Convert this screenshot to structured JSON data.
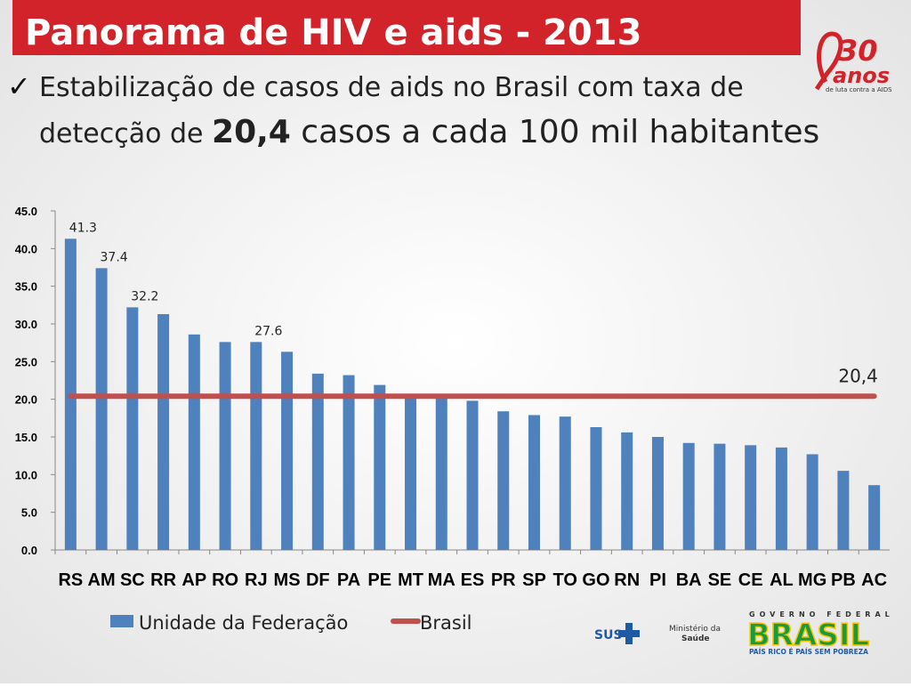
{
  "header": {
    "title": "Panorama de HIV e aids - 2013",
    "bullet": "✓",
    "line1": "Estabilização de casos de aids no Brasil com taxa de",
    "line2_start": "detecção de ",
    "line2_bold": "20,4",
    "line2_end": " casos a cada 100 mil habitantes"
  },
  "logos": {
    "anniversary_number": "30",
    "anniversary_word": "anos",
    "anniversary_caption": "de luta contra a AIDS",
    "sus": "SUS",
    "ministry_line1": "Ministério da",
    "ministry_line2": "Saúde",
    "government": "GOVERNO FEDERAL",
    "country": "BRASIL",
    "slogan": "PAÍS RICO É PAÍS SEM POBREZA"
  },
  "chart_data": {
    "type": "bar",
    "categories": [
      "RS",
      "AM",
      "SC",
      "RR",
      "AP",
      "RO",
      "RJ",
      "MS",
      "DF",
      "PA",
      "PE",
      "MT",
      "MA",
      "ES",
      "PR",
      "SP",
      "TO",
      "GO",
      "RN",
      "PI",
      "BA",
      "SE",
      "CE",
      "AL",
      "MG",
      "PB",
      "AC"
    ],
    "series": [
      {
        "name": "Unidade da Federação",
        "color": "#4f81bd",
        "type": "bar",
        "values": [
          41.3,
          37.4,
          32.2,
          31.3,
          28.6,
          27.6,
          27.6,
          26.3,
          23.4,
          23.2,
          21.9,
          20.5,
          20.2,
          19.8,
          18.4,
          17.9,
          17.7,
          16.3,
          15.6,
          15.0,
          14.2,
          14.1,
          13.9,
          13.6,
          12.7,
          10.5,
          8.6
        ],
        "value_labels": [
          "41.3",
          "37.4",
          "32.2",
          null,
          null,
          null,
          "27.6",
          null,
          null,
          null,
          null,
          null,
          null,
          null,
          null,
          null,
          null,
          null,
          null,
          null,
          null,
          null,
          null,
          null,
          null,
          null,
          null
        ]
      },
      {
        "name": "Brasil",
        "color": "#c0504d",
        "type": "line",
        "values": [
          20.4,
          20.4,
          20.4,
          20.4,
          20.4,
          20.4,
          20.4,
          20.4,
          20.4,
          20.4,
          20.4,
          20.4,
          20.4,
          20.4,
          20.4,
          20.4,
          20.4,
          20.4,
          20.4,
          20.4,
          20.4,
          20.4,
          20.4,
          20.4,
          20.4,
          20.4,
          20.4
        ],
        "value_labels": [
          null,
          null,
          null,
          null,
          null,
          null,
          null,
          null,
          null,
          null,
          null,
          null,
          null,
          null,
          null,
          null,
          null,
          null,
          null,
          null,
          null,
          null,
          null,
          null,
          null,
          null,
          "20,4"
        ]
      }
    ],
    "ylim": [
      0,
      45
    ],
    "yticks": [
      {
        "value": 0,
        "label": "0.0"
      },
      {
        "value": 5,
        "label": "5.0"
      },
      {
        "value": 10,
        "label": "10.0"
      },
      {
        "value": 15,
        "label": "15.0"
      },
      {
        "value": 20,
        "label": "20.0"
      },
      {
        "value": 25,
        "label": "25.0"
      },
      {
        "value": 30,
        "label": "30.0"
      },
      {
        "value": 35,
        "label": "35.0"
      },
      {
        "value": 40,
        "label": "40.0"
      },
      {
        "value": 45,
        "label": "45.0"
      }
    ],
    "grid": false,
    "legend": "bottom"
  }
}
